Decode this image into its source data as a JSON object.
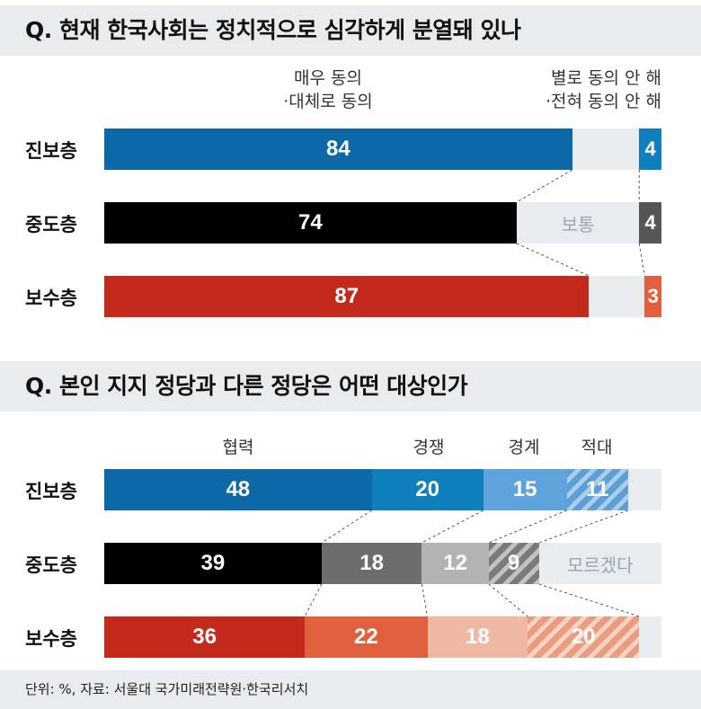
{
  "chart_data": [
    {
      "type": "bar",
      "stacked": true,
      "orientation": "horizontal",
      "title": "Q. 현재 한국사회는 정치적으로 심각하게 분열돼 있나",
      "categories": [
        "진보층",
        "중도층",
        "보수층"
      ],
      "series": [
        {
          "name": "매우 동의 ·대체로 동의",
          "values": [
            84,
            74,
            87
          ],
          "colors": [
            "#0c68a6",
            "#000000",
            "#c42a1c"
          ]
        },
        {
          "name": "보통",
          "values": [
            12,
            22,
            10
          ]
        },
        {
          "name": "별로 동의 안 해 ·전혀 동의 안 해",
          "values": [
            4,
            4,
            3
          ],
          "colors": [
            "#0f7fbd",
            "#555555",
            "#e0603d"
          ]
        }
      ],
      "legend": {
        "agree_line1": "매우 동의",
        "agree_line2": "·대체로 동의",
        "disagree_line1": "별로 동의 안 해",
        "disagree_line2": "·전혀 동의 안 해"
      },
      "middle_label": "보통",
      "xlim": [
        0,
        100
      ]
    },
    {
      "type": "bar",
      "stacked": true,
      "orientation": "horizontal",
      "title": "Q. 본인 지지 정당과 다른 정당은 어떤 대상인가",
      "categories": [
        "진보층",
        "중도층",
        "보수층"
      ],
      "series": [
        {
          "name": "협력",
          "values": [
            48,
            39,
            36
          ]
        },
        {
          "name": "경쟁",
          "values": [
            20,
            18,
            22
          ]
        },
        {
          "name": "경계",
          "values": [
            15,
            12,
            18
          ]
        },
        {
          "name": "적대",
          "values": [
            11,
            9,
            20
          ]
        },
        {
          "name": "모르겠다",
          "values": [
            6,
            22,
            4
          ]
        }
      ],
      "unknown_label": "모르겠다",
      "xlim": [
        0,
        100
      ]
    }
  ],
  "colors": {
    "progressive": [
      "#0c68a6",
      "#0f7fbd",
      "#5fa3dc",
      "hatch-blue"
    ],
    "moderate": [
      "#000000",
      "#6d6d6d",
      "#b3b3b3",
      "hatch-gray"
    ],
    "conservative": [
      "#c42a1c",
      "#e0603d",
      "#eeb8a3",
      "hatch-red"
    ],
    "neutral": "#e8ecef"
  },
  "footer": "단위: %, 자료: 서울대 국가미래전략원·한국리서치"
}
